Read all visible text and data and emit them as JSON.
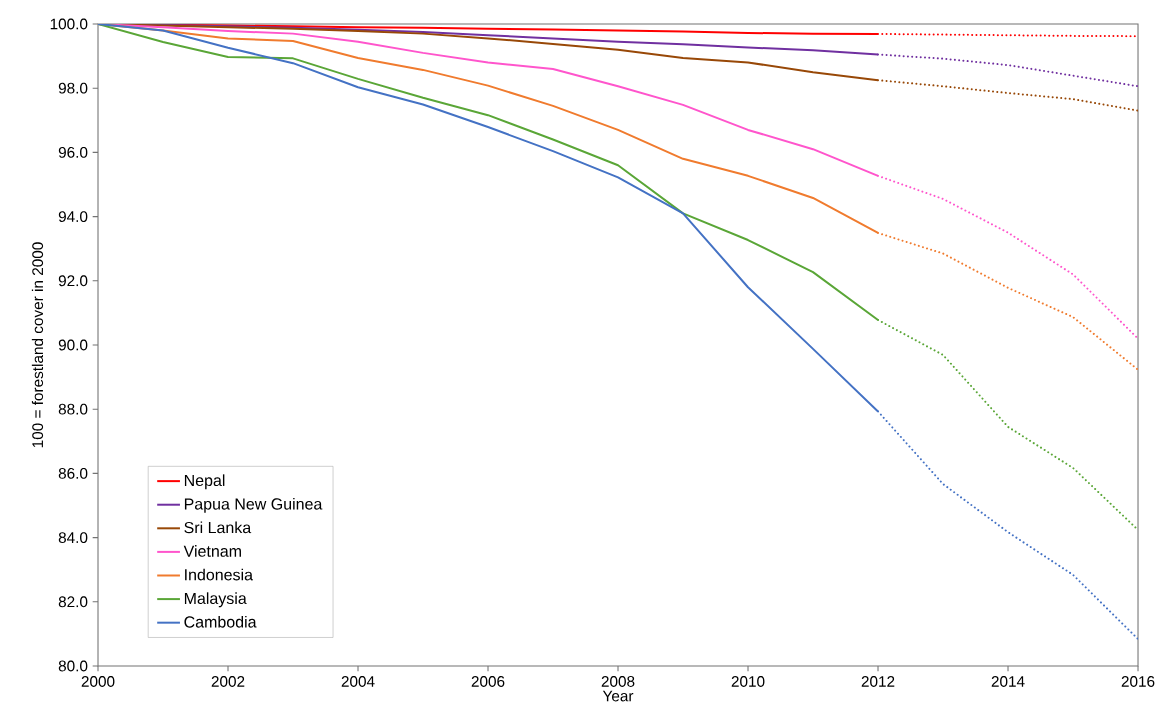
{
  "chart_data": {
    "type": "line",
    "xlabel": "Year",
    "ylabel": "100 = forestland cover in 2000",
    "xlim": [
      2000,
      2016
    ],
    "xticks": [
      2000,
      2002,
      2004,
      2006,
      2008,
      2010,
      2012,
      2014,
      2016
    ],
    "ylim": [
      80,
      100
    ],
    "yticks": [
      {
        "value": 80,
        "label": "80.0"
      },
      {
        "value": 82,
        "label": "82.0"
      },
      {
        "value": 84,
        "label": "84.0"
      },
      {
        "value": 86,
        "label": "86.0"
      },
      {
        "value": 88,
        "label": "88.0"
      },
      {
        "value": 90,
        "label": "90.0"
      },
      {
        "value": 92,
        "label": "92.0"
      },
      {
        "value": 94,
        "label": "94.0"
      },
      {
        "value": 96,
        "label": "96.0"
      },
      {
        "value": 98,
        "label": "98.0"
      },
      {
        "value": 100,
        "label": "100.0"
      }
    ],
    "grid": false,
    "legend": "bottom left",
    "series": [
      {
        "name": "Nepal",
        "color": "#ff0000",
        "line_style": "solid",
        "x": [
          2000,
          2001,
          2002,
          2003,
          2004,
          2005,
          2006,
          2007,
          2008,
          2009,
          2010,
          2011,
          2012
        ],
        "values": [
          100,
          99.98,
          99.95,
          99.93,
          99.9,
          99.88,
          99.85,
          99.83,
          99.8,
          99.77,
          99.72,
          99.7,
          99.69
        ]
      },
      {
        "name": "Papua New Guinea",
        "color": "#7030a0",
        "line_style": "solid",
        "x": [
          2000,
          2001,
          2002,
          2003,
          2004,
          2005,
          2006,
          2007,
          2008,
          2009,
          2010,
          2011,
          2012
        ],
        "values": [
          100,
          99.97,
          99.93,
          99.88,
          99.82,
          99.75,
          99.65,
          99.55,
          99.45,
          99.37,
          99.27,
          99.18,
          99.05
        ]
      },
      {
        "name": "Sri Lanka",
        "color": "#984807",
        "line_style": "solid",
        "x": [
          2000,
          2001,
          2002,
          2003,
          2004,
          2005,
          2006,
          2007,
          2008,
          2009,
          2010,
          2011,
          2012
        ],
        "values": [
          100,
          99.95,
          99.9,
          99.85,
          99.78,
          99.7,
          99.55,
          99.38,
          99.2,
          98.94,
          98.8,
          98.5,
          98.25
        ]
      },
      {
        "name": "Vietnam",
        "color": "#ff55cc",
        "line_style": "solid",
        "x": [
          2000,
          2001,
          2002,
          2003,
          2004,
          2005,
          2006,
          2007,
          2008,
          2009,
          2010,
          2011,
          2012
        ],
        "values": [
          100,
          99.9,
          99.78,
          99.7,
          99.45,
          99.1,
          98.8,
          98.6,
          98.06,
          97.48,
          96.7,
          96.1,
          95.27
        ]
      },
      {
        "name": "Indonesia",
        "color": "#f07b2e",
        "line_style": "solid",
        "x": [
          2000,
          2001,
          2002,
          2003,
          2004,
          2005,
          2006,
          2007,
          2008,
          2009,
          2010,
          2011,
          2012
        ],
        "values": [
          100,
          99.8,
          99.55,
          99.47,
          98.94,
          98.57,
          98.08,
          97.45,
          96.7,
          95.8,
          95.27,
          94.58,
          93.49
        ]
      },
      {
        "name": "Malaysia",
        "color": "#5aa637",
        "line_style": "solid",
        "x": [
          2000,
          2001,
          2002,
          2003,
          2004,
          2005,
          2006,
          2007,
          2008,
          2009,
          2010,
          2011,
          2012
        ],
        "values": [
          100,
          99.44,
          98.97,
          98.93,
          98.29,
          97.7,
          97.16,
          96.4,
          95.6,
          94.1,
          93.27,
          92.27,
          90.78
        ]
      },
      {
        "name": "Cambodia",
        "color": "#4472c4",
        "line_style": "solid",
        "x": [
          2000,
          2001,
          2002,
          2003,
          2004,
          2005,
          2006,
          2007,
          2008,
          2009,
          2010,
          2011,
          2012
        ],
        "values": [
          100,
          99.8,
          99.26,
          98.78,
          98.03,
          97.49,
          96.79,
          96.04,
          95.22,
          94.1,
          91.8,
          89.88,
          87.93
        ]
      },
      {
        "color": "#ff0000",
        "line_style": "dotted",
        "x": [
          2012,
          2013,
          2014,
          2015,
          2016
        ],
        "values": [
          99.69,
          99.67,
          99.65,
          99.63,
          99.62
        ]
      },
      {
        "color": "#7030a0",
        "line_style": "dotted",
        "x": [
          2012,
          2013,
          2014,
          2015,
          2016
        ],
        "values": [
          99.05,
          98.92,
          98.72,
          98.39,
          98.06
        ]
      },
      {
        "color": "#984807",
        "line_style": "dotted",
        "x": [
          2012,
          2013,
          2014,
          2015,
          2016
        ],
        "values": [
          98.25,
          98.06,
          97.85,
          97.66,
          97.3
        ]
      },
      {
        "color": "#ff55cc",
        "line_style": "dotted",
        "x": [
          2012,
          2013,
          2014,
          2015,
          2016
        ],
        "values": [
          95.27,
          94.55,
          93.5,
          92.2,
          90.2
        ]
      },
      {
        "color": "#f07b2e",
        "line_style": "dotted",
        "x": [
          2012,
          2013,
          2014,
          2015,
          2016
        ],
        "values": [
          93.49,
          92.85,
          91.78,
          90.87,
          89.23
        ]
      },
      {
        "color": "#5aa637",
        "line_style": "dotted",
        "x": [
          2012,
          2013,
          2014,
          2015,
          2016
        ],
        "values": [
          90.78,
          89.69,
          87.45,
          86.17,
          84.24
        ]
      },
      {
        "color": "#4472c4",
        "line_style": "dotted",
        "x": [
          2012,
          2013,
          2014,
          2015,
          2016
        ],
        "values": [
          87.93,
          85.67,
          84.17,
          82.84,
          80.84
        ]
      }
    ]
  }
}
